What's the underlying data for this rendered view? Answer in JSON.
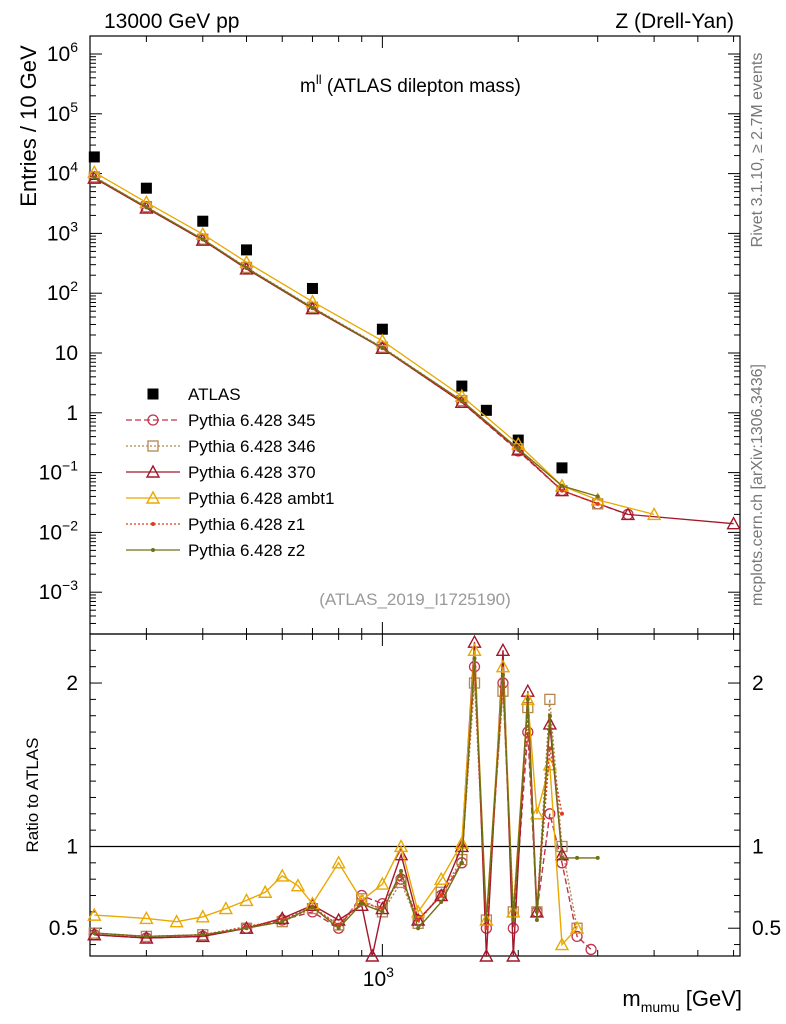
{
  "header": {
    "left": "13000 GeV pp",
    "right": "Z (Drell-Yan)"
  },
  "side_labels": {
    "rivet": "Rivet 3.1.10, ≥ 2.7M events",
    "mcplots": "mcplots.cern.ch [arXiv:1306.3436]"
  },
  "chart_data": [
    {
      "type": "scatter",
      "title_main": "m",
      "title_sup": "ll",
      "title_rest": " (ATLAS dilepton mass)",
      "analysis_id": "(ATLAS_2019_I1725190)",
      "ylabel": "Entries / 10 GeV",
      "yscale": "log",
      "xscale": "log",
      "xlim": [
        225,
        6200
      ],
      "ylim": [
        0.0002,
        2000000
      ],
      "y_ticks": [
        {
          "base": "10",
          "exp": "6",
          "v": 1000000
        },
        {
          "base": "10",
          "exp": "5",
          "v": 100000
        },
        {
          "base": "10",
          "exp": "4",
          "v": 10000
        },
        {
          "base": "10",
          "exp": "3",
          "v": 1000
        },
        {
          "base": "10",
          "exp": "2",
          "v": 100
        },
        {
          "base": "10",
          "exp": "",
          "v": 10
        },
        {
          "base": "1",
          "exp": "",
          "v": 1
        },
        {
          "base": "10",
          "exp": "−1",
          "v": 0.1
        },
        {
          "base": "10",
          "exp": "−2",
          "v": 0.01
        },
        {
          "base": "10",
          "exp": "−3",
          "v": 0.001
        }
      ],
      "legend_position": "left-middle",
      "series": [
        {
          "name": "ATLAS",
          "style": "data",
          "color": "#000000",
          "x": [
            230,
            300,
            400,
            500,
            700,
            1000,
            1500,
            1700,
            2000,
            2500
          ],
          "y": [
            19000,
            5700,
            1600,
            530,
            120,
            25,
            2.8,
            1.1,
            0.35,
            0.12
          ]
        },
        {
          "name": "Pythia 6.428 345",
          "style": "circle-dash",
          "color": "#c0334e",
          "x": [
            230,
            300,
            400,
            500,
            700,
            1000,
            1500,
            2000,
            2500,
            3000,
            3500
          ],
          "y": [
            8500,
            2700,
            780,
            260,
            56,
            12,
            1.5,
            0.23,
            0.05,
            0.03,
            0.02
          ]
        },
        {
          "name": "Pythia 6.428 346",
          "style": "square-dot",
          "color": "#b5864e",
          "x": [
            230,
            300,
            400,
            500,
            700,
            1000,
            1500,
            2000,
            2500,
            3000
          ],
          "y": [
            8800,
            2800,
            800,
            270,
            58,
            12.5,
            1.6,
            0.25,
            0.05,
            0.03
          ]
        },
        {
          "name": "Pythia 6.428 370",
          "style": "triangle-solid",
          "color": "#a4162a",
          "x": [
            230,
            300,
            400,
            500,
            700,
            1000,
            1500,
            2000,
            2500,
            3500,
            6000
          ],
          "y": [
            8400,
            2650,
            770,
            255,
            55,
            12,
            1.5,
            0.24,
            0.05,
            0.02,
            0.014
          ]
        },
        {
          "name": "Pythia 6.428 ambt1",
          "style": "triangle-solid",
          "color": "#eaa800",
          "x": [
            230,
            300,
            400,
            500,
            700,
            1000,
            1500,
            2000,
            2500,
            3000,
            4000
          ],
          "y": [
            10500,
            3300,
            970,
            330,
            72,
            16,
            1.9,
            0.3,
            0.06,
            0.035,
            0.02
          ]
        },
        {
          "name": "Pythia 6.428 z1",
          "style": "dot-dot",
          "color": "#e23a1e",
          "x": [
            230,
            300,
            400,
            500,
            700,
            1000,
            1500,
            2000,
            2500,
            3000
          ],
          "y": [
            8600,
            2720,
            790,
            262,
            56,
            12,
            1.55,
            0.24,
            0.05,
            0.03
          ]
        },
        {
          "name": "Pythia 6.428 z2",
          "style": "dot-solid",
          "color": "#707016",
          "x": [
            230,
            300,
            400,
            500,
            700,
            1000,
            1500,
            2000,
            2500,
            3000
          ],
          "y": [
            8700,
            2750,
            800,
            265,
            57,
            12.2,
            1.6,
            0.25,
            0.06,
            0.04
          ]
        }
      ]
    },
    {
      "type": "line",
      "ylabel": "Ratio to ATLAS",
      "xlabel_main": "m",
      "xlabel_sub": "mumu",
      "xlabel_unit": " [GeV]",
      "x_tick_label": {
        "base": "10",
        "exp": "3",
        "v": 1000
      },
      "xlim": [
        225,
        6200
      ],
      "ylim": [
        0.33,
        2.3
      ],
      "y_ticks": [
        {
          "label": "0.5",
          "v": 0.5
        },
        {
          "label": "1",
          "v": 1
        },
        {
          "label": "2",
          "v": 2
        }
      ],
      "series": [
        {
          "name": "Pythia 6.428 345",
          "color": "#c0334e",
          "x": [
            230,
            300,
            400,
            500,
            600,
            700,
            800,
            900,
            1000,
            1100,
            1200,
            1350,
            1500,
            1600,
            1700,
            1850,
            1950,
            2100,
            2200,
            2350,
            2500,
            2700,
            2900
          ],
          "y": [
            0.46,
            0.44,
            0.45,
            0.5,
            0.55,
            0.6,
            0.5,
            0.7,
            0.65,
            0.8,
            0.55,
            0.7,
            0.9,
            2.1,
            0.5,
            2.0,
            0.5,
            1.7,
            0.6,
            1.2,
            0.9,
            0.45,
            0.37
          ]
        },
        {
          "name": "Pythia 6.428 346",
          "color": "#b5864e",
          "x": [
            230,
            300,
            400,
            500,
            600,
            700,
            800,
            900,
            1000,
            1100,
            1200,
            1350,
            1500,
            1600,
            1700,
            1850,
            1950,
            2100,
            2200,
            2350,
            2500,
            2700
          ],
          "y": [
            0.47,
            0.45,
            0.46,
            0.5,
            0.54,
            0.62,
            0.52,
            0.68,
            0.6,
            0.78,
            0.53,
            0.72,
            0.92,
            2.0,
            0.55,
            1.95,
            0.6,
            1.85,
            0.6,
            1.9,
            1.0,
            0.5
          ]
        },
        {
          "name": "Pythia 6.428 370",
          "color": "#a4162a",
          "x": [
            230,
            300,
            400,
            500,
            600,
            700,
            800,
            900,
            950,
            1000,
            1100,
            1200,
            1350,
            1500,
            1600,
            1700,
            1850,
            1950,
            2100,
            2200,
            2350,
            2500
          ],
          "y": [
            0.46,
            0.44,
            0.45,
            0.5,
            0.56,
            0.64,
            0.55,
            0.64,
            0.33,
            0.62,
            0.95,
            0.55,
            0.7,
            1.0,
            2.25,
            0.33,
            2.2,
            0.33,
            1.95,
            0.6,
            1.75,
            0.95
          ]
        },
        {
          "name": "Pythia 6.428 ambt1",
          "color": "#eaa800",
          "x": [
            230,
            300,
            350,
            400,
            450,
            500,
            550,
            600,
            650,
            700,
            800,
            900,
            1000,
            1100,
            1200,
            1350,
            1500,
            1600,
            1700,
            1850,
            1950,
            2100,
            2200,
            2350,
            2500,
            2700
          ],
          "y": [
            0.58,
            0.56,
            0.54,
            0.57,
            0.62,
            0.67,
            0.72,
            0.82,
            0.76,
            0.65,
            0.9,
            0.67,
            0.77,
            1.0,
            0.6,
            0.8,
            1.02,
            2.2,
            0.55,
            2.1,
            0.6,
            1.9,
            1.2,
            1.5,
            0.4,
            0.5
          ]
        },
        {
          "name": "Pythia 6.428 z1",
          "color": "#e23a1e",
          "x": [
            230,
            300,
            400,
            500,
            600,
            700,
            800,
            900,
            1000,
            1100,
            1200,
            1350,
            1500,
            1600,
            1700,
            1850,
            1950,
            2100,
            2200,
            2350,
            2500
          ],
          "y": [
            0.47,
            0.45,
            0.46,
            0.51,
            0.55,
            0.63,
            0.52,
            0.66,
            0.62,
            0.82,
            0.55,
            0.7,
            0.9,
            2.1,
            0.5,
            2.0,
            0.6,
            1.8,
            0.6,
            1.6,
            1.2
          ]
        },
        {
          "name": "Pythia 6.428 z2",
          "color": "#707016",
          "x": [
            230,
            300,
            400,
            500,
            600,
            700,
            800,
            900,
            1000,
            1100,
            1200,
            1350,
            1500,
            1600,
            1700,
            1850,
            1950,
            2100,
            2200,
            2350,
            2500,
            2700,
            3000
          ],
          "y": [
            0.47,
            0.45,
            0.46,
            0.5,
            0.54,
            0.63,
            0.5,
            0.65,
            0.6,
            0.85,
            0.5,
            0.66,
            0.9,
            2.15,
            0.55,
            2.05,
            0.55,
            1.9,
            0.55,
            1.8,
            0.93,
            0.93,
            0.93
          ]
        }
      ]
    }
  ]
}
